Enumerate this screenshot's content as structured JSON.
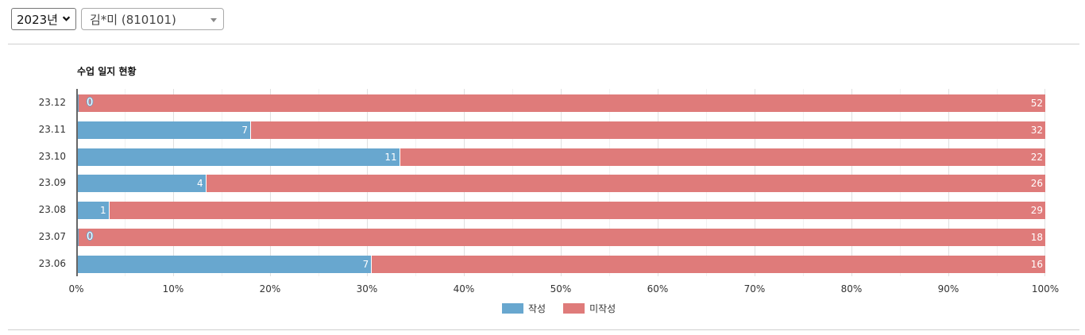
{
  "toolbar": {
    "year_select": {
      "value": "2023년",
      "icon": "chevron-down-icon"
    },
    "teacher_select": {
      "value": "김*미 (810101)",
      "icon": "caret-down-icon"
    }
  },
  "chart": {
    "title": "수업 일지 현황"
  },
  "colors": {
    "written": "#68a7cf",
    "unwritten": "#df7b7a",
    "grid": "#e0e0e0",
    "axis": "#666666"
  },
  "chart_data": {
    "type": "bar",
    "orientation": "horizontal",
    "stacked": "percent",
    "title": "수업 일지 현황",
    "xlabel": "",
    "ylabel": "",
    "xlim": [
      0,
      100
    ],
    "x_ticks": [
      "0%",
      "10%",
      "20%",
      "30%",
      "40%",
      "50%",
      "60%",
      "70%",
      "80%",
      "90%",
      "100%"
    ],
    "categories": [
      "23.12",
      "23.11",
      "23.10",
      "23.09",
      "23.08",
      "23.07",
      "23.06"
    ],
    "series": [
      {
        "name": "작성",
        "color": "#68a7cf",
        "values": [
          0,
          7,
          11,
          4,
          1,
          0,
          7
        ]
      },
      {
        "name": "미작성",
        "color": "#df7b7a",
        "values": [
          52,
          32,
          22,
          26,
          29,
          18,
          16
        ]
      }
    ],
    "grid": true,
    "legend_position": "bottom"
  },
  "legend": [
    {
      "label": "작성",
      "color": "#68a7cf"
    },
    {
      "label": "미작성",
      "color": "#df7b7a"
    }
  ]
}
